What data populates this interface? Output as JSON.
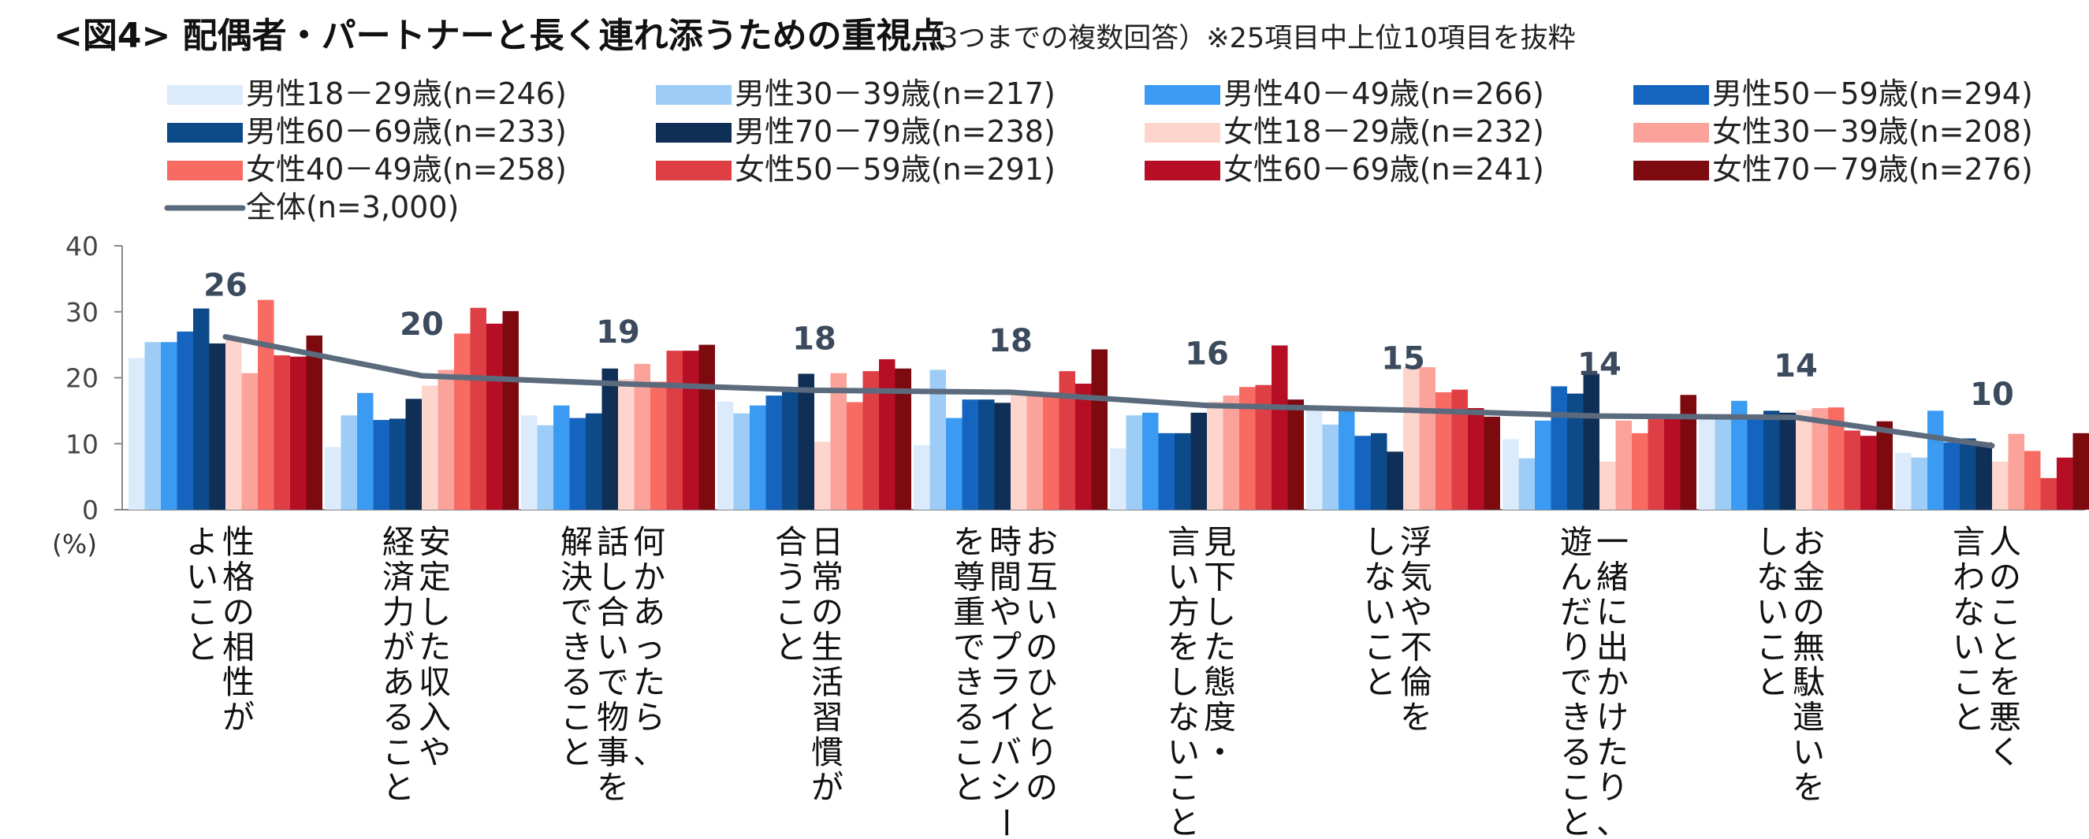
{
  "chart_data": {
    "type": "bar",
    "title": "<図4> 配偶者・パートナーと長く連れ添うための重視点",
    "subtitle": "（3つまでの複数回答）※25項目中上位10項目を抜粋",
    "ylabel": "(%)",
    "ylim": [
      0,
      40
    ],
    "yticks": [
      "0",
      "10",
      "20",
      "30",
      "40"
    ],
    "grid": false,
    "legend_position": "top",
    "categories": [
      "性格の相性が\nよいこと",
      "安定した収入や\n経済力があること",
      "何かあったら、\n話し合いで物事を\n解決できること",
      "日常の生活習慣が\n合うこと",
      "お互いのひとりの\n時間やプライバシー\nを尊重できること",
      "見下した態度・\n言い方をしないこと",
      "浮気や不倫を\nしないこと",
      "一緒に出かけたり、\n遊んだりできること",
      "お金の無駄遣いを\nしないこと",
      "人のことを悪く\n言わないこと"
    ],
    "series": [
      {
        "name": "男性18－29歳(n=246)",
        "color": "#dcebfb",
        "values": [
          23,
          9.5,
          14.3,
          16.4,
          9.8,
          9.3,
          15.8,
          10.7,
          13.8,
          8.6
        ]
      },
      {
        "name": "男性30－39歳(n=217)",
        "color": "#9dcdf7",
        "values": [
          25.4,
          14.3,
          12.8,
          14.6,
          21.2,
          14.3,
          12.9,
          7.8,
          13.7,
          7.9
        ]
      },
      {
        "name": "男性40－49歳(n=266)",
        "color": "#3b9bf2",
        "values": [
          25.4,
          17.7,
          15.8,
          15.8,
          13.9,
          14.7,
          15.0,
          13.5,
          16.5,
          15.0
        ]
      },
      {
        "name": "男性50－59歳(n=294)",
        "color": "#1565c0",
        "values": [
          27,
          13.6,
          13.9,
          17.3,
          16.7,
          11.6,
          11.2,
          18.7,
          14.0,
          10.2
        ]
      },
      {
        "name": "男性60－69歳(n=233)",
        "color": "#0d4a8a",
        "values": [
          30.5,
          13.8,
          14.6,
          18.0,
          16.7,
          11.6,
          11.6,
          17.6,
          15.0,
          10.8
        ]
      },
      {
        "name": "男性70－79歳(n=238)",
        "color": "#0f2f56",
        "values": [
          25.2,
          16.8,
          21.4,
          20.6,
          16.2,
          14.7,
          8.8,
          20.6,
          14.7,
          10.2
        ]
      },
      {
        "name": "女性18－29歳(n=232)",
        "color": "#fdd5cc",
        "values": [
          25.9,
          18.8,
          19.8,
          10.3,
          18.1,
          16.4,
          21.6,
          7.3,
          15.1,
          7.3
        ]
      },
      {
        "name": "女性30－39歳(n=208)",
        "color": "#fba39a",
        "values": [
          20.7,
          21.2,
          22.1,
          20.7,
          17.8,
          17.3,
          21.6,
          13.5,
          15.4,
          11.5
        ]
      },
      {
        "name": "女性40－49歳(n=258)",
        "color": "#f86b63",
        "values": [
          31.8,
          26.7,
          19.4,
          16.3,
          17.8,
          18.6,
          17.8,
          11.6,
          15.5,
          8.9
        ]
      },
      {
        "name": "女性50－59歳(n=291)",
        "color": "#de3f45",
        "values": [
          23.4,
          30.6,
          24.1,
          21.0,
          21.0,
          18.9,
          18.2,
          14.4,
          12.0,
          4.8
        ]
      },
      {
        "name": "女性60－69歳(n=241)",
        "color": "#b50e25",
        "values": [
          23.2,
          28.2,
          24.1,
          22.8,
          19.1,
          24.9,
          15.4,
          14.1,
          11.2,
          7.9
        ]
      },
      {
        "name": "女性70－79歳(n=276)",
        "color": "#7d0a0f",
        "values": [
          26.4,
          30.1,
          25.0,
          21.4,
          24.3,
          16.7,
          14.1,
          17.4,
          13.4,
          11.6
        ]
      }
    ],
    "line_series": {
      "name": "全体(n=3,000)",
      "color": "#5b6b7d",
      "values": [
        26.2,
        20.3,
        19.1,
        18.1,
        17.8,
        15.8,
        15.1,
        14.2,
        14.0,
        9.7
      ],
      "labels": [
        "26",
        "20",
        "19",
        "18",
        "18",
        "16",
        "15",
        "14",
        "14",
        "10"
      ]
    }
  }
}
